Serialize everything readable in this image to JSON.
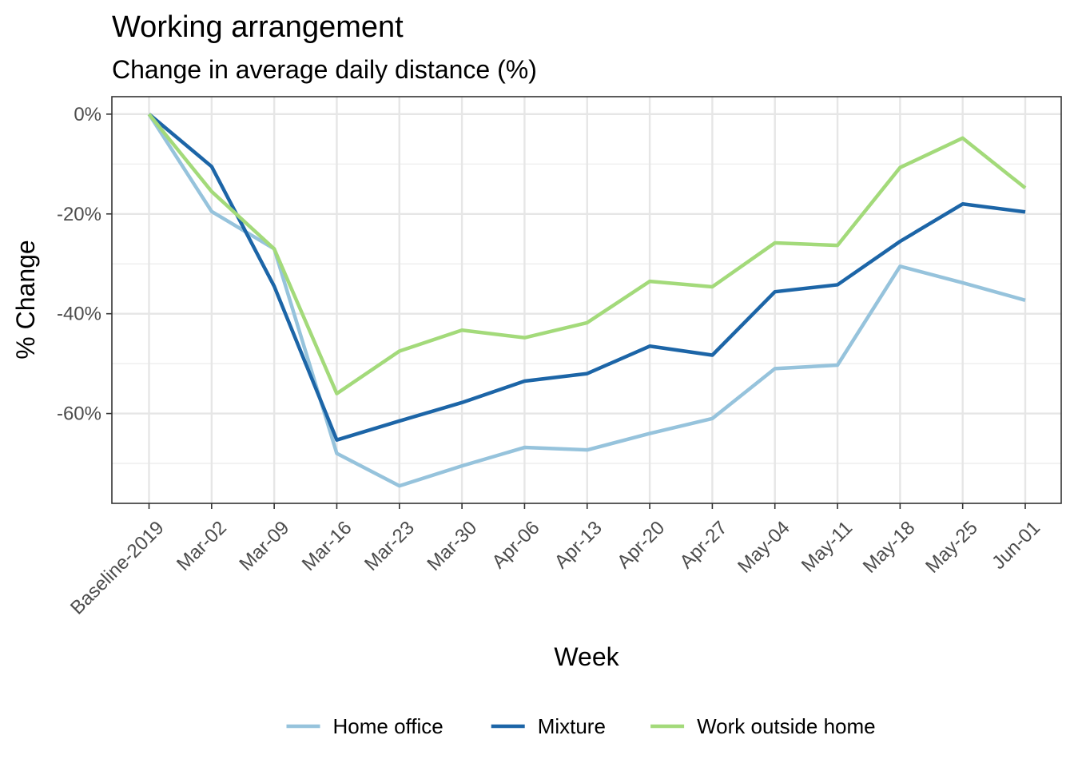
{
  "chart_data": {
    "type": "line",
    "title": "Working arrangement",
    "subtitle": "Change in average daily distance (%)",
    "xlabel": "Week",
    "ylabel": "% Change",
    "categories": [
      "Baseline-2019",
      "Mar-02",
      "Mar-09",
      "Mar-16",
      "Mar-23",
      "Mar-30",
      "Apr-06",
      "Apr-13",
      "Apr-20",
      "Apr-27",
      "May-04",
      "May-11",
      "May-18",
      "May-25",
      "Jun-01"
    ],
    "ylim": [
      -78,
      3.5
    ],
    "yticks": [
      0,
      -20,
      -40,
      -60
    ],
    "ytick_labels": [
      "0%",
      "-20%",
      "-40%",
      "-60%"
    ],
    "grid": true,
    "legend_position": "bottom",
    "series": [
      {
        "name": "Home office",
        "color": "#96c3dc",
        "values": [
          0,
          -19.5,
          -27,
          -68,
          -74.5,
          -70.5,
          -66.8,
          -67.3,
          -64,
          -61,
          -51,
          -50.3,
          -30.5,
          -33.8,
          -37.3
        ]
      },
      {
        "name": "Mixture",
        "color": "#1c65a7",
        "values": [
          0,
          -10.5,
          -34.5,
          -65.3,
          -61.5,
          -57.8,
          -53.5,
          -52,
          -46.5,
          -48.3,
          -35.6,
          -34.2,
          -25.5,
          -18,
          -19.6
        ]
      },
      {
        "name": "Work outside home",
        "color": "#a3da7a",
        "values": [
          0,
          -15.5,
          -27,
          -56,
          -47.5,
          -43.3,
          -44.8,
          -41.8,
          -33.5,
          -34.6,
          -25.8,
          -26.3,
          -10.7,
          -4.8,
          -14.8
        ]
      }
    ]
  }
}
